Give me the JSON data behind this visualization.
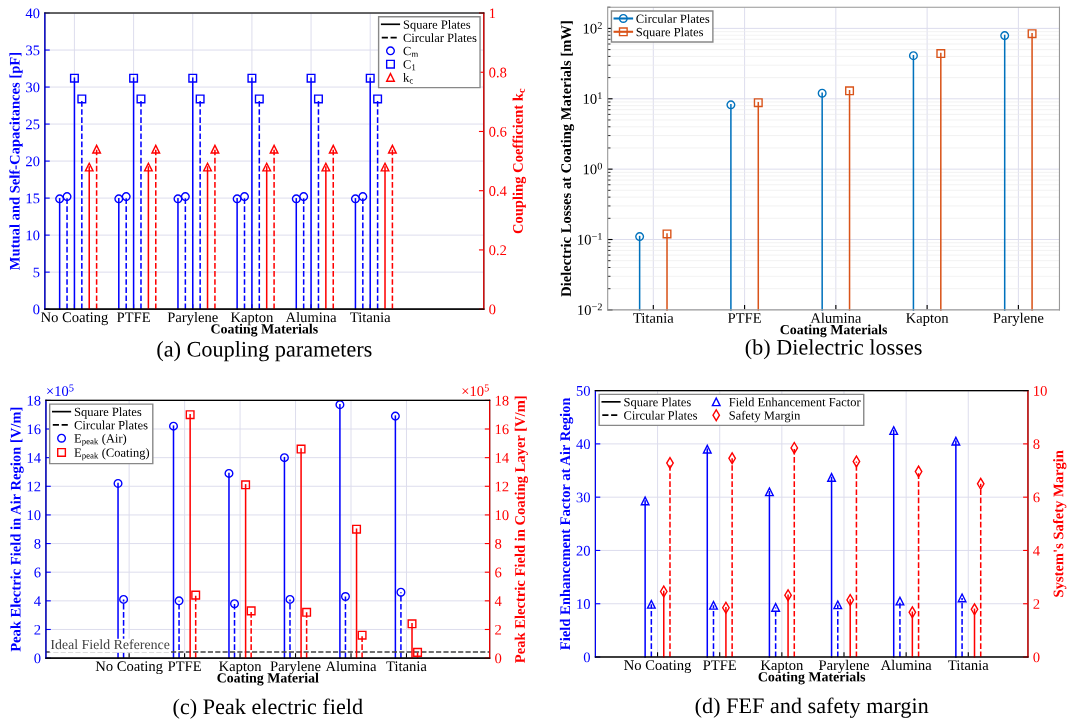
{
  "chart_data": [
    {
      "type": "lollipop",
      "title": "(a) Coupling parameters",
      "xlabel": "Coating Materials",
      "ylabel": "Mutual and Self-Capacitances [pF]",
      "y2label": "Coupling Coefficient k$_{c}$",
      "categories": [
        "No Coating",
        "PTFE",
        "Parylene",
        "Kapton",
        "Alumina",
        "Titania"
      ],
      "ylim": [
        0,
        40
      ],
      "yticks": [
        0,
        5,
        10,
        15,
        20,
        25,
        30,
        35,
        40
      ],
      "y2lim": [
        0,
        1
      ],
      "y2ticks": [
        0,
        0.2,
        0.4,
        0.6,
        0.8,
        1
      ],
      "grid": true,
      "legend": "top right",
      "series": [
        {
          "name": "Square Plates",
          "color": "#000000",
          "line_style": "solid",
          "marker": "none",
          "values": [
            null,
            null,
            null,
            null,
            null,
            null
          ]
        },
        {
          "name": "Circular Plates",
          "color": "#000000",
          "line_style": "dashed",
          "marker": "none",
          "values": [
            null,
            null,
            null,
            null,
            null,
            null
          ]
        },
        {
          "name": "C$_{m}$",
          "color": "#0000ff",
          "line_style": "solid",
          "marker": "circle",
          "values": [
            14.9,
            14.9,
            14.9,
            14.9,
            14.9,
            14.9
          ]
        },
        {
          "color": "#0000ff",
          "line_style": "dashed",
          "marker": "circle",
          "values": [
            15.2,
            15.2,
            15.2,
            15.2,
            15.2,
            15.2
          ]
        },
        {
          "name": "C$_{1}$",
          "color": "#0000ff",
          "line_style": "solid",
          "marker": "square",
          "values": [
            31.2,
            31.2,
            31.2,
            31.2,
            31.2,
            31.2
          ]
        },
        {
          "color": "#0000ff",
          "line_style": "dashed",
          "marker": "square",
          "values": [
            28.4,
            28.4,
            28.4,
            28.4,
            28.4,
            28.4
          ]
        },
        {
          "name": "k$_{c}$",
          "color": "#ff0000",
          "line_style": "solid",
          "marker": "triangle",
          "axis": "y2",
          "values": [
            0.48,
            0.48,
            0.48,
            0.48,
            0.48,
            0.48
          ]
        },
        {
          "color": "#ff0000",
          "line_style": "dashed",
          "marker": "triangle",
          "axis": "y2",
          "values": [
            0.54,
            0.54,
            0.54,
            0.54,
            0.54,
            0.54
          ]
        }
      ]
    },
    {
      "type": "lollipop",
      "title": "(b) Dielectric losses",
      "xlabel": "Coating Materials",
      "ylabel": "Dielectric Losses at Coating Materials [mW]",
      "categories": [
        "Titania",
        "PTFE",
        "Alumina",
        "Kapton",
        "Parylene"
      ],
      "log": true,
      "ylim": [
        0.01,
        200
      ],
      "yticks": [
        {
          "value": 0.01,
          "label": "10$^{−2}$"
        },
        {
          "value": 0.1,
          "label": "10$^{−1}$"
        },
        {
          "value": 1,
          "label": "10$^{0}$"
        },
        {
          "value": 10,
          "label": "10$^{1}$"
        },
        {
          "value": 100,
          "label": "10$^{2}$"
        }
      ],
      "grid": true,
      "legend": "top left",
      "series": [
        {
          "name": "Circular Plates",
          "color": "#0072bd",
          "line_style": "solid",
          "marker": "circle",
          "values": [
            0.11,
            8.2,
            12,
            41,
            79
          ]
        },
        {
          "name": "Square Plates",
          "color": "#d95319",
          "line_style": "solid",
          "marker": "square",
          "values": [
            0.12,
            8.8,
            13,
            44,
            84
          ]
        }
      ]
    },
    {
      "type": "lollipop",
      "title": "(c) Peak electric field",
      "xlabel": "Coating Material",
      "ylabel": "Peak Electric Field in Air Region [V/m]",
      "y2label": "Peak Electric Field in Coating Layer [V/m]",
      "categories": [
        "No Coating",
        "PTFE",
        "Kapton",
        "Parylene",
        "Alumina",
        "Titania"
      ],
      "ylim": [
        0,
        18
      ],
      "yticks": [
        0,
        2,
        4,
        6,
        8,
        10,
        12,
        14,
        16,
        18
      ],
      "y2lim": [
        0,
        18
      ],
      "y2ticks": [
        0,
        2,
        4,
        6,
        8,
        10,
        12,
        14,
        16,
        18
      ],
      "annotations": [
        "×10$^{5}$",
        "×10$^{5}$"
      ],
      "ref_lines": [
        {
          "axis": "y",
          "value": 0.43,
          "label": "Ideal Field Reference",
          "color": "#404040",
          "line_style": "dashed"
        }
      ],
      "grid": true,
      "legend": "top left",
      "series": [
        {
          "name": "Square Plates",
          "color": "#000000",
          "line_style": "solid",
          "marker": "none",
          "values": [
            null,
            null,
            null,
            null,
            null,
            null
          ]
        },
        {
          "name": "Circular Plates",
          "color": "#000000",
          "line_style": "dashed",
          "marker": "none",
          "values": [
            null,
            null,
            null,
            null,
            null,
            null
          ]
        },
        {
          "name": "E$_{peak}$ (Air)",
          "color": "#0000ff",
          "line_style": "solid",
          "marker": "circle",
          "values": [
            12.2,
            16.2,
            12.9,
            14.0,
            17.7,
            16.9
          ]
        },
        {
          "color": "#0000ff",
          "line_style": "dashed",
          "marker": "circle",
          "values": [
            4.1,
            4.0,
            3.8,
            4.1,
            4.3,
            4.6
          ]
        },
        {
          "name": "E$_{peak}$ (Coating)",
          "color": "#ff0000",
          "line_style": "solid",
          "marker": "square",
          "axis": "y2",
          "values": [
            null,
            17.0,
            12.1,
            14.6,
            9.0,
            2.4
          ]
        },
        {
          "color": "#ff0000",
          "line_style": "dashed",
          "marker": "square",
          "axis": "y2",
          "values": [
            null,
            4.4,
            3.3,
            3.2,
            1.6,
            0.4
          ]
        }
      ]
    },
    {
      "type": "lollipop",
      "title": "(d) FEF and safety margin",
      "xlabel": "Coating Materials",
      "ylabel": "Field Enhancement Factor at Air Region",
      "y2label": "System's Safety Margin",
      "categories": [
        "No Coating",
        "PTFE",
        "Kapton",
        "Parylene",
        "Alumina",
        "Titania"
      ],
      "ylim": [
        0,
        50
      ],
      "yticks": [
        0,
        10,
        20,
        30,
        40,
        50
      ],
      "y2lim": [
        0,
        10
      ],
      "y2ticks": [
        0,
        2,
        4,
        6,
        8,
        10
      ],
      "grid": true,
      "legend": "top left",
      "series": [
        {
          "name": "Square Plates",
          "color": "#000000",
          "line_style": "solid",
          "marker": "none",
          "values": [
            null,
            null,
            null,
            null,
            null,
            null
          ]
        },
        {
          "name": "Circular Plates",
          "color": "#000000",
          "line_style": "dashed",
          "marker": "none",
          "values": [
            null,
            null,
            null,
            null,
            null,
            null
          ]
        },
        {
          "name": "Field Enhancement Factor",
          "color": "#0000ff",
          "line_style": "solid",
          "marker": "triangle",
          "values": [
            29.3,
            39.0,
            31.0,
            33.7,
            42.5,
            40.5
          ]
        },
        {
          "color": "#0000ff",
          "line_style": "dashed",
          "marker": "triangle",
          "values": [
            9.9,
            9.7,
            9.3,
            9.8,
            10.5,
            11.1
          ]
        },
        {
          "name": "Safety Margin",
          "color": "#ff0000",
          "line_style": "solid",
          "marker": "diamond",
          "axis": "y2",
          "values": [
            2.46,
            1.85,
            2.32,
            2.14,
            1.68,
            1.79
          ]
        },
        {
          "color": "#ff0000",
          "line_style": "dashed",
          "marker": "diamond",
          "axis": "y2",
          "values": [
            7.28,
            7.46,
            7.85,
            7.34,
            6.96,
            6.5
          ]
        }
      ]
    }
  ]
}
